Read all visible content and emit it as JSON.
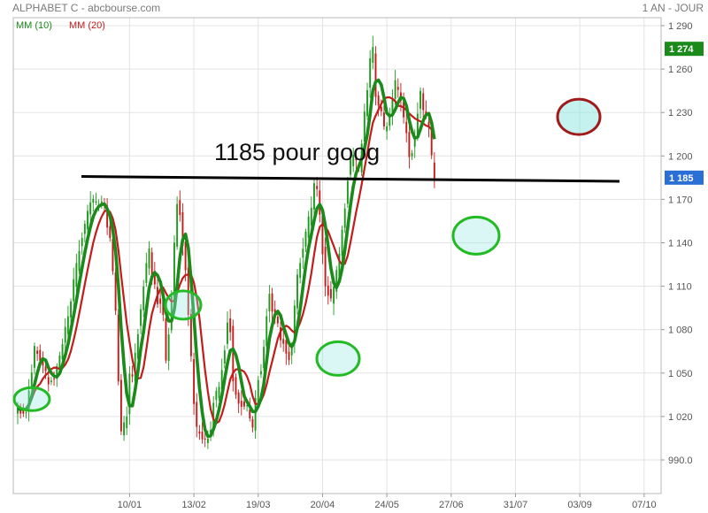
{
  "header": {
    "left_text": "ALPHABET C - abcbourse.com",
    "right_text": "1 AN - JOUR"
  },
  "chart_data": {
    "type": "candlestick",
    "ylim": [
      980,
      1300
    ],
    "y_ticks": [
      990,
      1020,
      1050,
      1080,
      1110,
      1140,
      1170,
      1200,
      1230,
      1260,
      1290
    ],
    "y_tick_labels": [
      "990.0",
      "1 020",
      "1 050",
      "1 080",
      "1 110",
      "1 140",
      "1 170",
      "1 200",
      "1 230",
      "1 260",
      "1 290"
    ],
    "x_tick_labels": [
      "10/01",
      "13/02",
      "19/03",
      "20/04",
      "24/05",
      "27/06",
      "31/07",
      "03/09",
      "07/10"
    ],
    "x_tick_index": [
      40,
      63,
      86,
      109,
      132,
      155,
      178,
      201,
      224
    ],
    "grid": true,
    "legend": [
      {
        "name": "MM (10)",
        "color": "#1a8a1a"
      },
      {
        "name": "MM (20)",
        "color": "#c41b1b"
      }
    ],
    "price_badges": [
      {
        "label": "1 274",
        "value": 1274,
        "color": "#1a8a1a"
      },
      {
        "label": "1 185",
        "value": 1185,
        "color": "#2a6fd6"
      }
    ],
    "annotation": {
      "text": "1185 pour goog"
    },
    "waypoints": [
      [
        0,
        1025
      ],
      [
        3,
        1025
      ],
      [
        6,
        1068
      ],
      [
        9,
        1055
      ],
      [
        11,
        1042
      ],
      [
        14,
        1052
      ],
      [
        18,
        1088
      ],
      [
        22,
        1135
      ],
      [
        25,
        1160
      ],
      [
        27,
        1170
      ],
      [
        28,
        1165
      ],
      [
        31,
        1167
      ],
      [
        33,
        1140
      ],
      [
        34,
        1120
      ],
      [
        35,
        1092
      ],
      [
        36,
        1045
      ],
      [
        37,
        1008
      ],
      [
        39,
        1020
      ],
      [
        40,
        1050
      ],
      [
        41,
        1045
      ],
      [
        43,
        1080
      ],
      [
        45,
        1110
      ],
      [
        47,
        1135
      ],
      [
        48,
        1120
      ],
      [
        50,
        1100
      ],
      [
        51,
        1100
      ],
      [
        52,
        1090
      ],
      [
        53,
        1060
      ],
      [
        55,
        1100
      ],
      [
        56,
        1140
      ],
      [
        57,
        1170
      ],
      [
        58,
        1160
      ],
      [
        60,
        1120
      ],
      [
        61,
        1092
      ],
      [
        62,
        1060
      ],
      [
        63,
        1030
      ],
      [
        64,
        1010
      ],
      [
        66,
        1005
      ],
      [
        67,
        1002
      ],
      [
        69,
        1012
      ],
      [
        70,
        1030
      ],
      [
        72,
        1040
      ],
      [
        73,
        1055
      ],
      [
        74,
        1068
      ],
      [
        75,
        1085
      ],
      [
        76,
        1080
      ],
      [
        77,
        1045
      ],
      [
        78,
        1035
      ],
      [
        79,
        1030
      ],
      [
        81,
        1030
      ],
      [
        82,
        1026
      ],
      [
        84,
        1012
      ],
      [
        85,
        1030
      ],
      [
        86,
        1048
      ],
      [
        87,
        1052
      ],
      [
        88,
        1070
      ],
      [
        89,
        1090
      ],
      [
        90,
        1108
      ],
      [
        91,
        1095
      ],
      [
        93,
        1082
      ],
      [
        95,
        1070
      ],
      [
        97,
        1060
      ],
      [
        98,
        1070
      ],
      [
        99,
        1095
      ],
      [
        100,
        1118
      ],
      [
        101,
        1128
      ],
      [
        102,
        1135
      ],
      [
        104,
        1155
      ],
      [
        105,
        1165
      ],
      [
        106,
        1178
      ],
      [
        107,
        1175
      ],
      [
        108,
        1160
      ],
      [
        109,
        1135
      ],
      [
        110,
        1112
      ],
      [
        112,
        1100
      ],
      [
        114,
        1118
      ],
      [
        116,
        1150
      ],
      [
        117,
        1165
      ],
      [
        118,
        1185
      ],
      [
        119,
        1195
      ],
      [
        120,
        1200
      ],
      [
        122,
        1190
      ],
      [
        124,
        1230
      ],
      [
        126,
        1266
      ],
      [
        127,
        1272
      ],
      [
        128,
        1240
      ],
      [
        130,
        1232
      ],
      [
        131,
        1220
      ],
      [
        132,
        1220
      ],
      [
        134,
        1240
      ],
      [
        135,
        1250
      ],
      [
        137,
        1238
      ],
      [
        139,
        1215
      ],
      [
        140,
        1200
      ],
      [
        141,
        1205
      ],
      [
        142,
        1215
      ],
      [
        143,
        1230
      ],
      [
        144,
        1242
      ],
      [
        145,
        1230
      ],
      [
        147,
        1220
      ],
      [
        148,
        1198
      ],
      [
        149,
        1185
      ]
    ]
  }
}
